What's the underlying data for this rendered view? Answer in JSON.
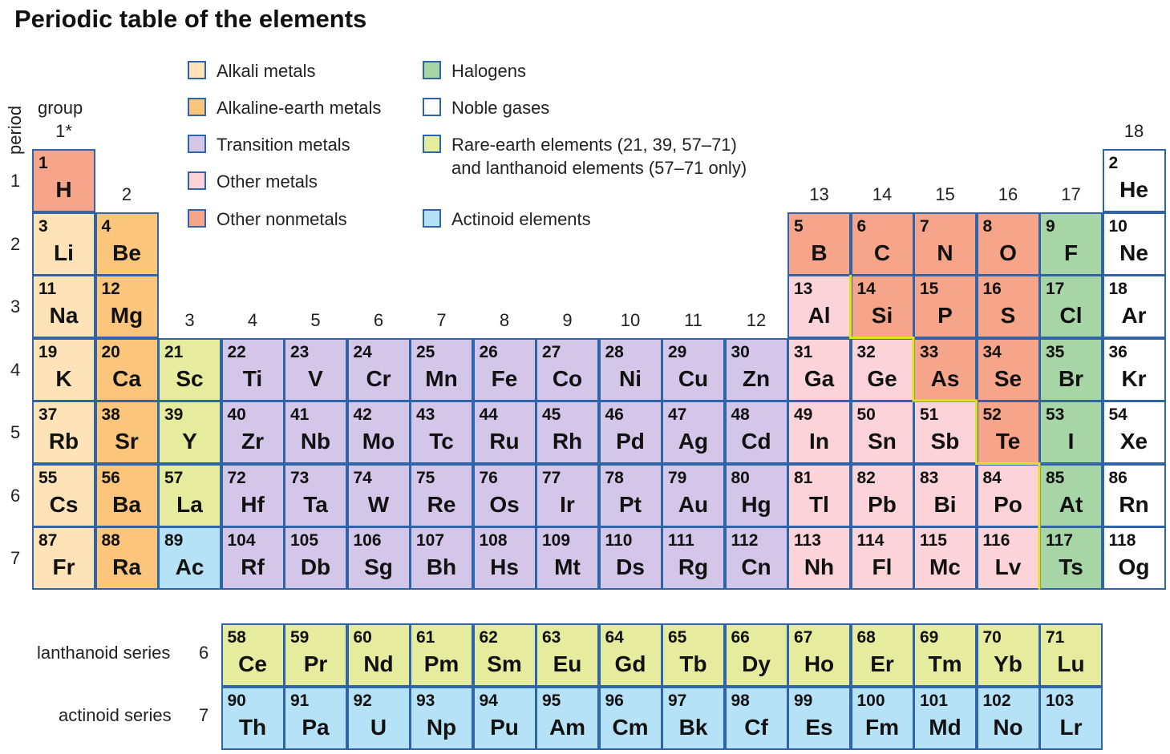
{
  "title": "Periodic table of the elements",
  "axis": {
    "period_label": "period",
    "group_label": "group",
    "groups": [
      "1*",
      "2",
      "3",
      "4",
      "5",
      "6",
      "7",
      "8",
      "9",
      "10",
      "11",
      "12",
      "13",
      "14",
      "15",
      "16",
      "17",
      "18"
    ],
    "periods": [
      "1",
      "2",
      "3",
      "4",
      "5",
      "6",
      "7"
    ]
  },
  "series_labels": {
    "lanthanoid": "lanthanoid series",
    "lanthanoid_period": "6",
    "actinoid": "actinoid series",
    "actinoid_period": "7"
  },
  "colors": {
    "alkali": "#fde3b7",
    "alkaline": "#fbc57b",
    "transition": "#d3c6e9",
    "othermetal": "#fbd3d9",
    "nonmetal": "#f7a58a",
    "halogen": "#a7d5a6",
    "noble": "#ffffff",
    "rareearth": "#e6ec9d",
    "actinoid": "#b5e2f6",
    "border": "#2f64a8",
    "staircase": "#e1e21a"
  },
  "legend": [
    {
      "cat": "alkali",
      "label": "Alkali metals"
    },
    {
      "cat": "alkaline",
      "label": "Alkaline-earth metals"
    },
    {
      "cat": "transition",
      "label": "Transition metals"
    },
    {
      "cat": "othermetal",
      "label": "Other metals"
    },
    {
      "cat": "nonmetal",
      "label": "Other nonmetals"
    },
    {
      "cat": "halogen",
      "label": "Halogens"
    },
    {
      "cat": "noble",
      "label": "Noble gases"
    },
    {
      "cat": "rareearth",
      "label": "Rare-earth elements (21, 39, 57–71)\nand lanthanoid elements (57–71 only)"
    },
    {
      "cat": "actinoid",
      "label": "Actinoid elements"
    }
  ],
  "elements": [
    {
      "n": "1",
      "s": "H",
      "g": 1,
      "p": 1,
      "c": "nonmetal"
    },
    {
      "n": "2",
      "s": "He",
      "g": 18,
      "p": 1,
      "c": "noble"
    },
    {
      "n": "3",
      "s": "Li",
      "g": 1,
      "p": 2,
      "c": "alkali"
    },
    {
      "n": "4",
      "s": "Be",
      "g": 2,
      "p": 2,
      "c": "alkaline"
    },
    {
      "n": "5",
      "s": "B",
      "g": 13,
      "p": 2,
      "c": "nonmetal"
    },
    {
      "n": "6",
      "s": "C",
      "g": 14,
      "p": 2,
      "c": "nonmetal"
    },
    {
      "n": "7",
      "s": "N",
      "g": 15,
      "p": 2,
      "c": "nonmetal"
    },
    {
      "n": "8",
      "s": "O",
      "g": 16,
      "p": 2,
      "c": "nonmetal"
    },
    {
      "n": "9",
      "s": "F",
      "g": 17,
      "p": 2,
      "c": "halogen"
    },
    {
      "n": "10",
      "s": "Ne",
      "g": 18,
      "p": 2,
      "c": "noble"
    },
    {
      "n": "11",
      "s": "Na",
      "g": 1,
      "p": 3,
      "c": "alkali"
    },
    {
      "n": "12",
      "s": "Mg",
      "g": 2,
      "p": 3,
      "c": "alkaline"
    },
    {
      "n": "13",
      "s": "Al",
      "g": 13,
      "p": 3,
      "c": "othermetal"
    },
    {
      "n": "14",
      "s": "Si",
      "g": 14,
      "p": 3,
      "c": "nonmetal"
    },
    {
      "n": "15",
      "s": "P",
      "g": 15,
      "p": 3,
      "c": "nonmetal"
    },
    {
      "n": "16",
      "s": "S",
      "g": 16,
      "p": 3,
      "c": "nonmetal"
    },
    {
      "n": "17",
      "s": "Cl",
      "g": 17,
      "p": 3,
      "c": "halogen"
    },
    {
      "n": "18",
      "s": "Ar",
      "g": 18,
      "p": 3,
      "c": "noble"
    },
    {
      "n": "19",
      "s": "K",
      "g": 1,
      "p": 4,
      "c": "alkali"
    },
    {
      "n": "20",
      "s": "Ca",
      "g": 2,
      "p": 4,
      "c": "alkaline"
    },
    {
      "n": "21",
      "s": "Sc",
      "g": 3,
      "p": 4,
      "c": "rareearth"
    },
    {
      "n": "22",
      "s": "Ti",
      "g": 4,
      "p": 4,
      "c": "transition"
    },
    {
      "n": "23",
      "s": "V",
      "g": 5,
      "p": 4,
      "c": "transition"
    },
    {
      "n": "24",
      "s": "Cr",
      "g": 6,
      "p": 4,
      "c": "transition"
    },
    {
      "n": "25",
      "s": "Mn",
      "g": 7,
      "p": 4,
      "c": "transition"
    },
    {
      "n": "26",
      "s": "Fe",
      "g": 8,
      "p": 4,
      "c": "transition"
    },
    {
      "n": "27",
      "s": "Co",
      "g": 9,
      "p": 4,
      "c": "transition"
    },
    {
      "n": "28",
      "s": "Ni",
      "g": 10,
      "p": 4,
      "c": "transition"
    },
    {
      "n": "29",
      "s": "Cu",
      "g": 11,
      "p": 4,
      "c": "transition"
    },
    {
      "n": "30",
      "s": "Zn",
      "g": 12,
      "p": 4,
      "c": "transition"
    },
    {
      "n": "31",
      "s": "Ga",
      "g": 13,
      "p": 4,
      "c": "othermetal"
    },
    {
      "n": "32",
      "s": "Ge",
      "g": 14,
      "p": 4,
      "c": "othermetal"
    },
    {
      "n": "33",
      "s": "As",
      "g": 15,
      "p": 4,
      "c": "nonmetal"
    },
    {
      "n": "34",
      "s": "Se",
      "g": 16,
      "p": 4,
      "c": "nonmetal"
    },
    {
      "n": "35",
      "s": "Br",
      "g": 17,
      "p": 4,
      "c": "halogen"
    },
    {
      "n": "36",
      "s": "Kr",
      "g": 18,
      "p": 4,
      "c": "noble"
    },
    {
      "n": "37",
      "s": "Rb",
      "g": 1,
      "p": 5,
      "c": "alkali"
    },
    {
      "n": "38",
      "s": "Sr",
      "g": 2,
      "p": 5,
      "c": "alkaline"
    },
    {
      "n": "39",
      "s": "Y",
      "g": 3,
      "p": 5,
      "c": "rareearth"
    },
    {
      "n": "40",
      "s": "Zr",
      "g": 4,
      "p": 5,
      "c": "transition"
    },
    {
      "n": "41",
      "s": "Nb",
      "g": 5,
      "p": 5,
      "c": "transition"
    },
    {
      "n": "42",
      "s": "Mo",
      "g": 6,
      "p": 5,
      "c": "transition"
    },
    {
      "n": "43",
      "s": "Tc",
      "g": 7,
      "p": 5,
      "c": "transition"
    },
    {
      "n": "44",
      "s": "Ru",
      "g": 8,
      "p": 5,
      "c": "transition"
    },
    {
      "n": "45",
      "s": "Rh",
      "g": 9,
      "p": 5,
      "c": "transition"
    },
    {
      "n": "46",
      "s": "Pd",
      "g": 10,
      "p": 5,
      "c": "transition"
    },
    {
      "n": "47",
      "s": "Ag",
      "g": 11,
      "p": 5,
      "c": "transition"
    },
    {
      "n": "48",
      "s": "Cd",
      "g": 12,
      "p": 5,
      "c": "transition"
    },
    {
      "n": "49",
      "s": "In",
      "g": 13,
      "p": 5,
      "c": "othermetal"
    },
    {
      "n": "50",
      "s": "Sn",
      "g": 14,
      "p": 5,
      "c": "othermetal"
    },
    {
      "n": "51",
      "s": "Sb",
      "g": 15,
      "p": 5,
      "c": "othermetal"
    },
    {
      "n": "52",
      "s": "Te",
      "g": 16,
      "p": 5,
      "c": "nonmetal"
    },
    {
      "n": "53",
      "s": "I",
      "g": 17,
      "p": 5,
      "c": "halogen"
    },
    {
      "n": "54",
      "s": "Xe",
      "g": 18,
      "p": 5,
      "c": "noble"
    },
    {
      "n": "55",
      "s": "Cs",
      "g": 1,
      "p": 6,
      "c": "alkali"
    },
    {
      "n": "56",
      "s": "Ba",
      "g": 2,
      "p": 6,
      "c": "alkaline"
    },
    {
      "n": "57",
      "s": "La",
      "g": 3,
      "p": 6,
      "c": "rareearth"
    },
    {
      "n": "72",
      "s": "Hf",
      "g": 4,
      "p": 6,
      "c": "transition"
    },
    {
      "n": "73",
      "s": "Ta",
      "g": 5,
      "p": 6,
      "c": "transition"
    },
    {
      "n": "74",
      "s": "W",
      "g": 6,
      "p": 6,
      "c": "transition"
    },
    {
      "n": "75",
      "s": "Re",
      "g": 7,
      "p": 6,
      "c": "transition"
    },
    {
      "n": "76",
      "s": "Os",
      "g": 8,
      "p": 6,
      "c": "transition"
    },
    {
      "n": "77",
      "s": "Ir",
      "g": 9,
      "p": 6,
      "c": "transition"
    },
    {
      "n": "78",
      "s": "Pt",
      "g": 10,
      "p": 6,
      "c": "transition"
    },
    {
      "n": "79",
      "s": "Au",
      "g": 11,
      "p": 6,
      "c": "transition"
    },
    {
      "n": "80",
      "s": "Hg",
      "g": 12,
      "p": 6,
      "c": "transition"
    },
    {
      "n": "81",
      "s": "Tl",
      "g": 13,
      "p": 6,
      "c": "othermetal"
    },
    {
      "n": "82",
      "s": "Pb",
      "g": 14,
      "p": 6,
      "c": "othermetal"
    },
    {
      "n": "83",
      "s": "Bi",
      "g": 15,
      "p": 6,
      "c": "othermetal"
    },
    {
      "n": "84",
      "s": "Po",
      "g": 16,
      "p": 6,
      "c": "othermetal"
    },
    {
      "n": "85",
      "s": "At",
      "g": 17,
      "p": 6,
      "c": "halogen"
    },
    {
      "n": "86",
      "s": "Rn",
      "g": 18,
      "p": 6,
      "c": "noble"
    },
    {
      "n": "87",
      "s": "Fr",
      "g": 1,
      "p": 7,
      "c": "alkali"
    },
    {
      "n": "88",
      "s": "Ra",
      "g": 2,
      "p": 7,
      "c": "alkaline"
    },
    {
      "n": "89",
      "s": "Ac",
      "g": 3,
      "p": 7,
      "c": "actinoid"
    },
    {
      "n": "104",
      "s": "Rf",
      "g": 4,
      "p": 7,
      "c": "transition"
    },
    {
      "n": "105",
      "s": "Db",
      "g": 5,
      "p": 7,
      "c": "transition"
    },
    {
      "n": "106",
      "s": "Sg",
      "g": 6,
      "p": 7,
      "c": "transition"
    },
    {
      "n": "107",
      "s": "Bh",
      "g": 7,
      "p": 7,
      "c": "transition"
    },
    {
      "n": "108",
      "s": "Hs",
      "g": 8,
      "p": 7,
      "c": "transition"
    },
    {
      "n": "109",
      "s": "Mt",
      "g": 9,
      "p": 7,
      "c": "transition"
    },
    {
      "n": "110",
      "s": "Ds",
      "g": 10,
      "p": 7,
      "c": "transition"
    },
    {
      "n": "111",
      "s": "Rg",
      "g": 11,
      "p": 7,
      "c": "transition"
    },
    {
      "n": "112",
      "s": "Cn",
      "g": 12,
      "p": 7,
      "c": "transition"
    },
    {
      "n": "113",
      "s": "Nh",
      "g": 13,
      "p": 7,
      "c": "othermetal"
    },
    {
      "n": "114",
      "s": "Fl",
      "g": 14,
      "p": 7,
      "c": "othermetal"
    },
    {
      "n": "115",
      "s": "Mc",
      "g": 15,
      "p": 7,
      "c": "othermetal"
    },
    {
      "n": "116",
      "s": "Lv",
      "g": 16,
      "p": 7,
      "c": "othermetal"
    },
    {
      "n": "117",
      "s": "Ts",
      "g": 17,
      "p": 7,
      "c": "halogen"
    },
    {
      "n": "118",
      "s": "Og",
      "g": 18,
      "p": 7,
      "c": "noble"
    }
  ],
  "lanthanoids": [
    {
      "n": "58",
      "s": "Ce"
    },
    {
      "n": "59",
      "s": "Pr"
    },
    {
      "n": "60",
      "s": "Nd"
    },
    {
      "n": "61",
      "s": "Pm"
    },
    {
      "n": "62",
      "s": "Sm"
    },
    {
      "n": "63",
      "s": "Eu"
    },
    {
      "n": "64",
      "s": "Gd"
    },
    {
      "n": "65",
      "s": "Tb"
    },
    {
      "n": "66",
      "s": "Dy"
    },
    {
      "n": "67",
      "s": "Ho"
    },
    {
      "n": "68",
      "s": "Er"
    },
    {
      "n": "69",
      "s": "Tm"
    },
    {
      "n": "70",
      "s": "Yb"
    },
    {
      "n": "71",
      "s": "Lu"
    }
  ],
  "actinoids": [
    {
      "n": "90",
      "s": "Th"
    },
    {
      "n": "91",
      "s": "Pa"
    },
    {
      "n": "92",
      "s": "U"
    },
    {
      "n": "93",
      "s": "Np"
    },
    {
      "n": "94",
      "s": "Pu"
    },
    {
      "n": "95",
      "s": "Am"
    },
    {
      "n": "96",
      "s": "Cm"
    },
    {
      "n": "97",
      "s": "Bk"
    },
    {
      "n": "98",
      "s": "Cf"
    },
    {
      "n": "99",
      "s": "Es"
    },
    {
      "n": "100",
      "s": "Fm"
    },
    {
      "n": "101",
      "s": "Md"
    },
    {
      "n": "102",
      "s": "No"
    },
    {
      "n": "103",
      "s": "Lr"
    }
  ]
}
